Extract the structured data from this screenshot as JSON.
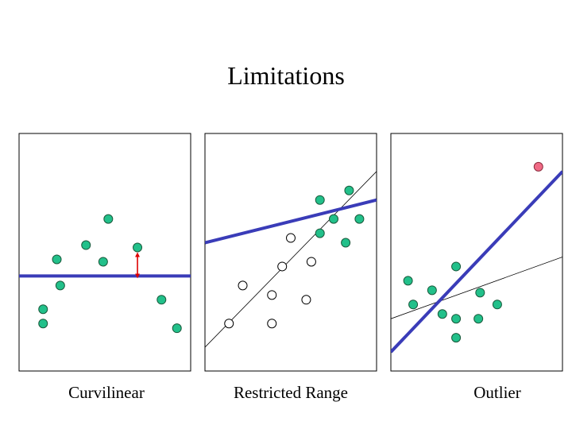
{
  "title": "Limitations",
  "colors": {
    "point_fill": "#22c08a",
    "point_stroke": "#1a5a3c",
    "open_point_fill": "#ffffff",
    "outlier_fill": "#f06a85",
    "fit_line": "#3a3cb8",
    "reference_line": "#000000",
    "distance_arrow": "#dd0000"
  },
  "panels": [
    {
      "id": "curvilinear",
      "caption": "Curvilinear",
      "green_points": [
        [
          0.14,
          0.26
        ],
        [
          0.14,
          0.2
        ],
        [
          0.24,
          0.36
        ],
        [
          0.22,
          0.47
        ],
        [
          0.39,
          0.53
        ],
        [
          0.52,
          0.64
        ],
        [
          0.49,
          0.46
        ],
        [
          0.69,
          0.52
        ],
        [
          0.83,
          0.3
        ],
        [
          0.92,
          0.18
        ]
      ],
      "open_points": [],
      "outlier_points": [],
      "fit_line": {
        "from": [
          0.0,
          0.4
        ],
        "to": [
          1.0,
          0.4
        ]
      },
      "reference_line": null,
      "distance_arrow": {
        "x": 0.69,
        "from": 0.4,
        "to": 0.52
      }
    },
    {
      "id": "restricted-range",
      "caption": "Restricted Range",
      "green_points": [
        [
          0.67,
          0.72
        ],
        [
          0.84,
          0.76
        ],
        [
          0.75,
          0.64
        ],
        [
          0.9,
          0.64
        ],
        [
          0.67,
          0.58
        ],
        [
          0.82,
          0.54
        ]
      ],
      "open_points": [
        [
          0.14,
          0.2
        ],
        [
          0.39,
          0.2
        ],
        [
          0.22,
          0.36
        ],
        [
          0.39,
          0.32
        ],
        [
          0.59,
          0.3
        ],
        [
          0.45,
          0.44
        ],
        [
          0.62,
          0.46
        ],
        [
          0.5,
          0.56
        ]
      ],
      "outlier_points": [],
      "fit_line": {
        "from": [
          0.0,
          0.54
        ],
        "to": [
          1.0,
          0.72
        ]
      },
      "reference_line": {
        "from": [
          0.0,
          0.1
        ],
        "to": [
          1.0,
          0.84
        ]
      },
      "distance_arrow": null
    },
    {
      "id": "outlier",
      "caption": "Outlier",
      "green_points": [
        [
          0.1,
          0.38
        ],
        [
          0.13,
          0.28
        ],
        [
          0.24,
          0.34
        ],
        [
          0.38,
          0.44
        ],
        [
          0.3,
          0.24
        ],
        [
          0.38,
          0.22
        ],
        [
          0.52,
          0.33
        ],
        [
          0.62,
          0.28
        ],
        [
          0.38,
          0.14
        ],
        [
          0.51,
          0.22
        ]
      ],
      "open_points": [],
      "outlier_points": [
        [
          0.86,
          0.86
        ]
      ],
      "fit_line": {
        "from": [
          0.0,
          0.08
        ],
        "to": [
          1.0,
          0.84
        ]
      },
      "reference_line": {
        "from": [
          0.0,
          0.22
        ],
        "to": [
          1.0,
          0.48
        ]
      },
      "distance_arrow": null
    }
  ]
}
